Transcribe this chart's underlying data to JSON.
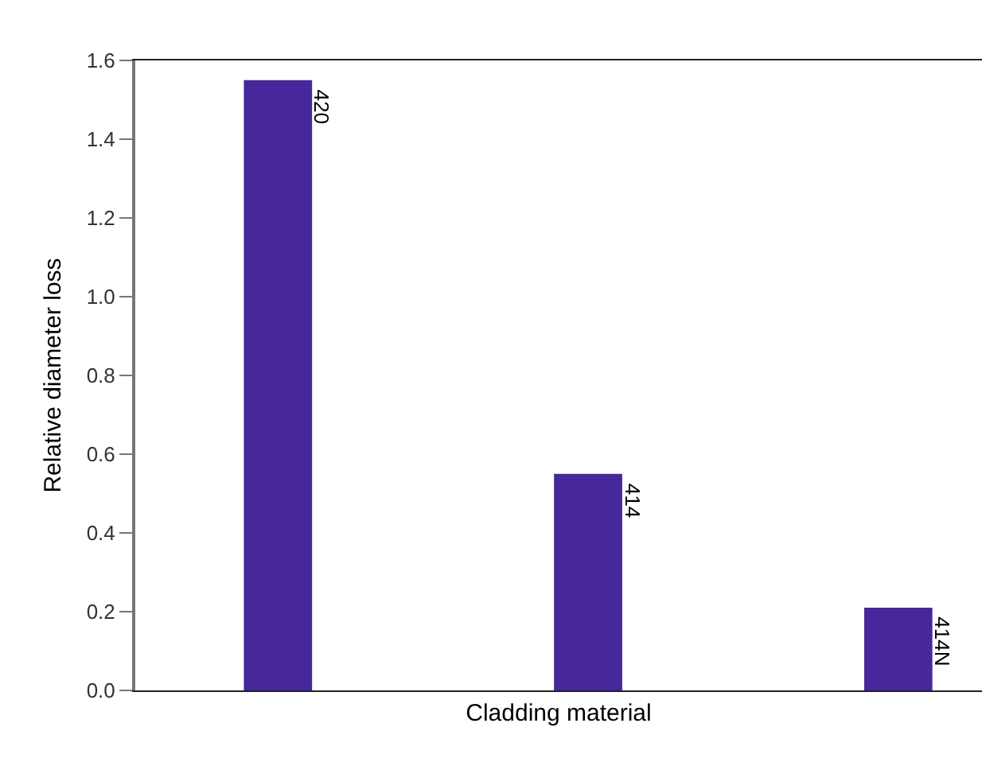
{
  "chart_data": {
    "type": "bar",
    "xlabel": "Cladding material",
    "ylabel": "Relative diameter loss",
    "categories": [
      "420",
      "414",
      "414N"
    ],
    "values": [
      1.55,
      0.55,
      0.21
    ],
    "color": "#46289a",
    "ylim": [
      0,
      1.6
    ],
    "yticks": [
      {
        "value": 0,
        "label": "0.0"
      },
      0.2,
      0.4,
      0.6,
      0.8,
      {
        "value": 1,
        "label": "1.0"
      },
      1.2,
      1.4,
      1.6
    ],
    "tick_labels": "y"
  }
}
